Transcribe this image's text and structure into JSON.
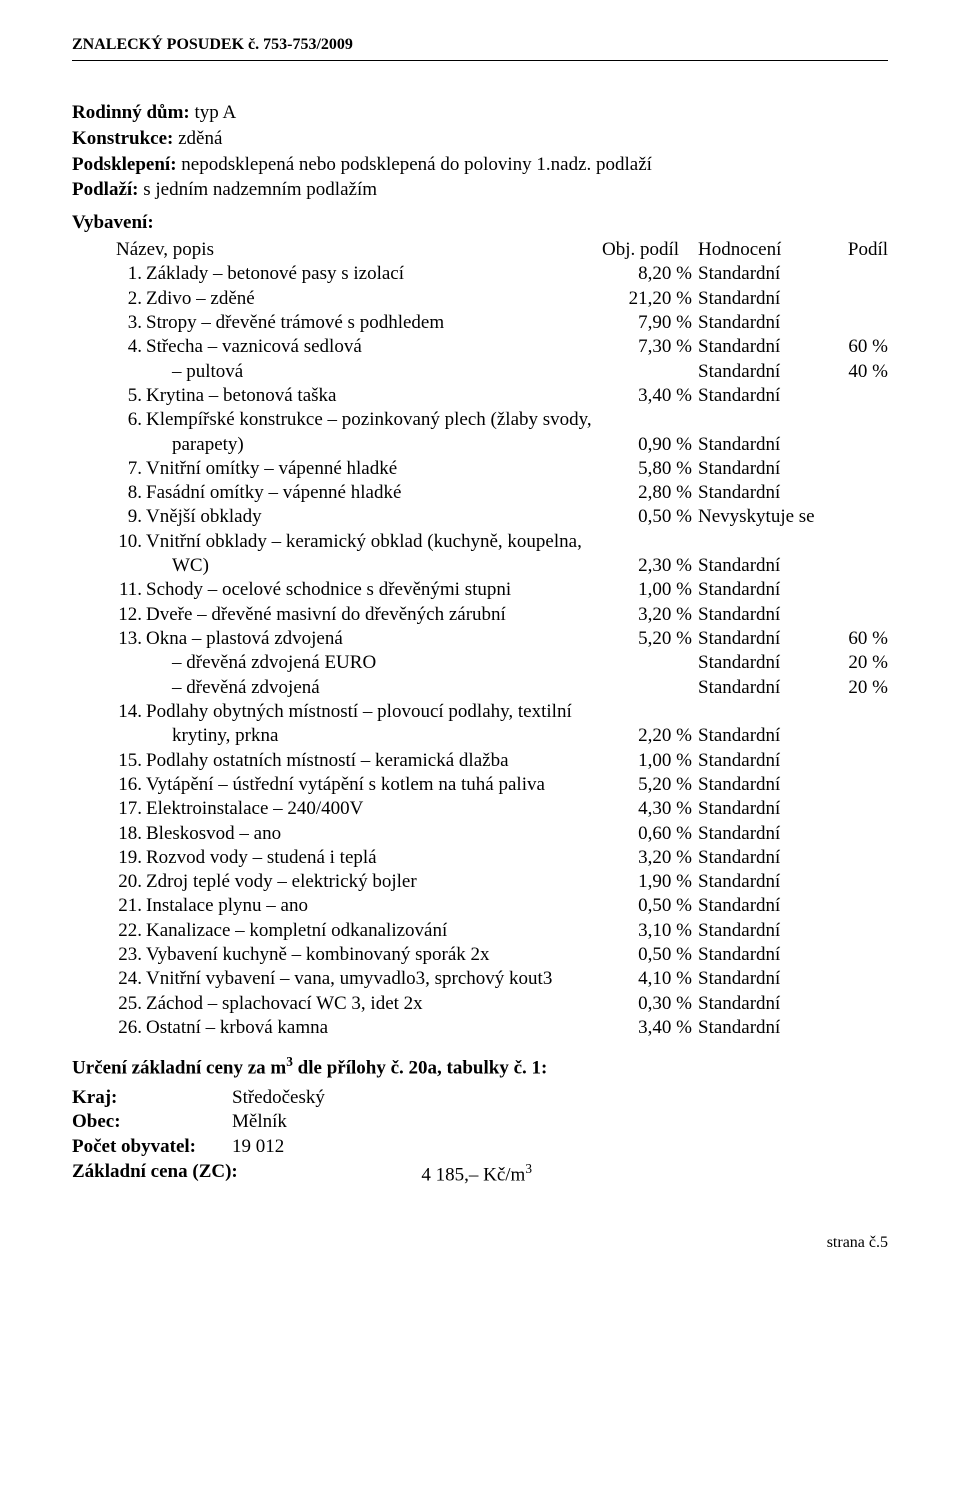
{
  "header": "ZNALECKÝ  POSUDEK č. 753-753/2009",
  "intro": {
    "line1_label": "Rodinný dům:",
    "line1_value": " typ A",
    "line2_label": "Konstrukce:",
    "line2_value": " zděná",
    "line3_label": "Podsklepení:",
    "line3_value": " nepodsklepená nebo podsklepená do poloviny 1.nadz. podlaží",
    "line4_label": "Podlaží:",
    "line4_value": " s jedním nadzemním podlažím"
  },
  "vybaveni_title": "Vybavení:",
  "table_header": {
    "name": "Název, popis",
    "pct": "Obj. podíl",
    "eval": "Hodnocení",
    "share": "Podíl"
  },
  "rows": [
    {
      "n": "1.",
      "label": "Základy – betonové pasy s izolací",
      "pct": "8,20 %",
      "eval": "Standardní"
    },
    {
      "n": "2.",
      "label": "Zdivo – zděné",
      "pct": "21,20 %",
      "eval": "Standardní"
    },
    {
      "n": "3.",
      "label": "Stropy – dřevěné trámové s podhledem",
      "pct": "7,90 %",
      "eval": "Standardní"
    },
    {
      "n": "4.",
      "label": "Střecha – vaznicová sedlová",
      "pct": "7,30 %",
      "eval": "Standardní",
      "share": "60 %"
    },
    {
      "indent": true,
      "label": "– pultová",
      "eval": "Standardní",
      "share": "40 %"
    },
    {
      "n": "5.",
      "label": "Krytina – betonová taška",
      "pct": "3,40 %",
      "eval": "Standardní"
    },
    {
      "n": "6.",
      "label": "Klempířské konstrukce – pozinkovaný plech (žlaby svody,"
    },
    {
      "indent": true,
      "label": "parapety)",
      "pct": "0,90 %",
      "eval": "Standardní"
    },
    {
      "n": "7.",
      "label": "Vnitřní omítky – vápenné hladké",
      "pct": "5,80 %",
      "eval": "Standardní"
    },
    {
      "n": "8.",
      "label": "Fasádní omítky – vápenné hladké",
      "pct": "2,80 %",
      "eval": "Standardní"
    },
    {
      "n": "9.",
      "label": "Vnější obklady",
      "pct": "0,50 %",
      "eval": "Nevyskytuje se"
    },
    {
      "n": "10.",
      "label": "Vnitřní obklady – keramický obklad (kuchyně, koupelna,"
    },
    {
      "indent": true,
      "label": "WC)",
      "pct": "2,30 %",
      "eval": "Standardní"
    },
    {
      "n": "11.",
      "label": "Schody – ocelové schodnice s dřevěnými stupni",
      "pct": "1,00 %",
      "eval": "Standardní"
    },
    {
      "n": "12.",
      "label": "Dveře – dřevěné masivní do dřevěných zárubní",
      "pct": "3,20 %",
      "eval": "Standardní"
    },
    {
      "n": "13.",
      "label": "Okna – plastová zdvojená",
      "pct": "5,20 %",
      "eval": "Standardní",
      "share": "60 %"
    },
    {
      "indent": true,
      "label": "– dřevěná zdvojená EURO",
      "eval": "Standardní",
      "share": "20 %"
    },
    {
      "indent": true,
      "label": "– dřevěná zdvojená",
      "eval": "Standardní",
      "share": "20 %"
    },
    {
      "n": "14.",
      "label": "Podlahy obytných místností – plovoucí podlahy, textilní"
    },
    {
      "indent": true,
      "label": "krytiny, prkna",
      "pct": "2,20 %",
      "eval": "Standardní"
    },
    {
      "n": "15.",
      "label": "Podlahy ostatních místností – keramická dlažba",
      "pct": "1,00 %",
      "eval": "Standardní"
    },
    {
      "n": "16.",
      "label": "Vytápění – ústřední vytápění s kotlem na tuhá paliva",
      "pct": "5,20 %",
      "eval": "Standardní"
    },
    {
      "n": "17.",
      "label": "Elektroinstalace – 240/400V",
      "pct": "4,30 %",
      "eval": "Standardní"
    },
    {
      "n": "18.",
      "label": "Bleskosvod – ano",
      "pct": "0,60 %",
      "eval": "Standardní"
    },
    {
      "n": "19.",
      "label": "Rozvod vody – studená i teplá",
      "pct": "3,20 %",
      "eval": "Standardní"
    },
    {
      "n": "20.",
      "label": "Zdroj teplé vody – elektrický bojler",
      "pct": "1,90 %",
      "eval": "Standardní"
    },
    {
      "n": "21.",
      "label": "Instalace plynu – ano",
      "pct": "0,50 %",
      "eval": "Standardní"
    },
    {
      "n": "22.",
      "label": "Kanalizace – kompletní odkanalizování",
      "pct": "3,10 %",
      "eval": "Standardní"
    },
    {
      "n": "23.",
      "label": "Vybavení kuchyně – kombinovaný sporák 2x",
      "pct": "0,50 %",
      "eval": "Standardní"
    },
    {
      "n": "24.",
      "label": "Vnitřní vybavení – vana, umyvadlo3, sprchový kout3",
      "pct": "4,10 %",
      "eval": "Standardní"
    },
    {
      "n": "25.",
      "label": "Záchod – splachovací WC 3, idet 2x",
      "pct": "0,30 %",
      "eval": "Standardní"
    },
    {
      "n": "26.",
      "label": "Ostatní – krbová kamna",
      "pct": "3,40 %",
      "eval": "Standardní"
    }
  ],
  "urceni_prefix": "Určení základní ceny za m",
  "urceni_sup": "3",
  "urceni_suffix": " dle přílohy č. 20a, tabulky č. 1:",
  "kv": {
    "kraj_label": "Kraj:",
    "kraj_value": "Středočeský",
    "obec_label": "Obec:",
    "obec_value": "Mělník",
    "pocet_label": "Počet obyvatel:",
    "pocet_value": "19 012",
    "zc_label": "Základní cena (ZC):",
    "zc_value_prefix": "4 185,–  Kč/m",
    "zc_value_sup": "3"
  },
  "footer": "strana č.5"
}
